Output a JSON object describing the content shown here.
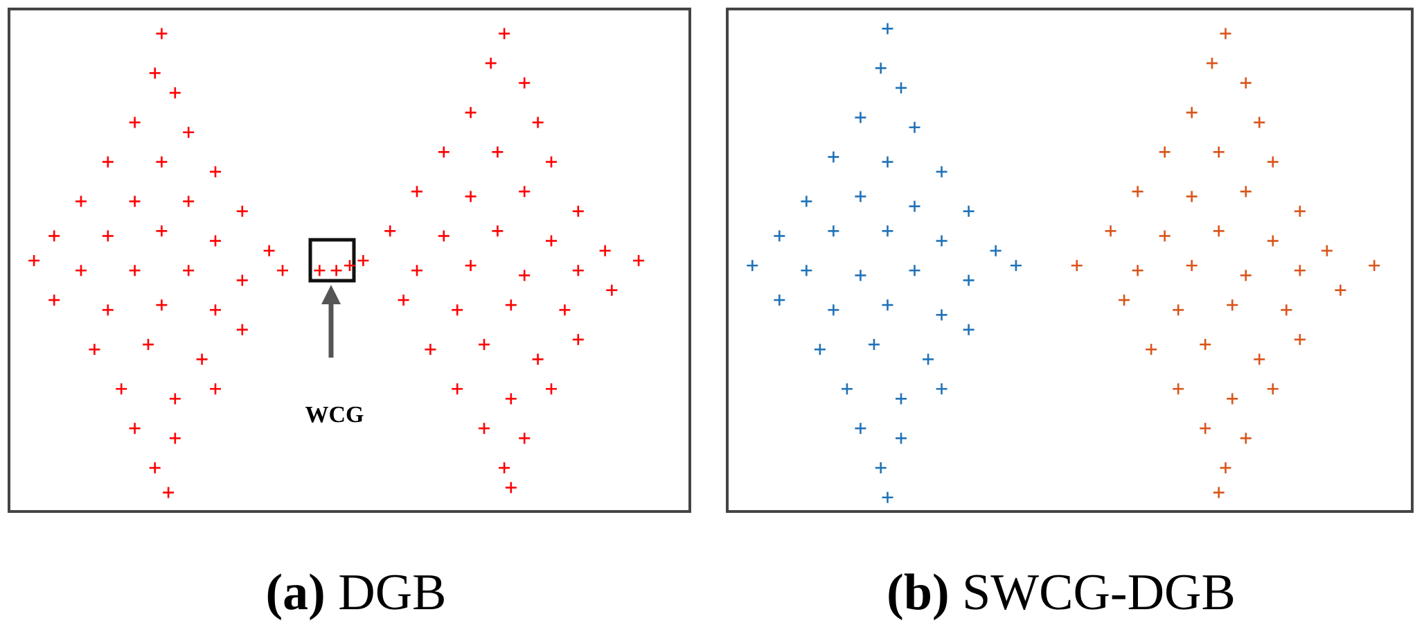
{
  "chart_data": [
    {
      "type": "scatter",
      "panel_label": "(a)",
      "title": "DGB",
      "annotation": "WCG",
      "xlim": [
        0,
        100
      ],
      "ylim": [
        0,
        100
      ],
      "series": [
        {
          "color": "#ff0000",
          "x": [
            22,
            21,
            24,
            18,
            26,
            14,
            22,
            30,
            10,
            18,
            26,
            34,
            6,
            14,
            22,
            30,
            38,
            3,
            10,
            18,
            26,
            34,
            40,
            6,
            14,
            22,
            30,
            12,
            20,
            28,
            34,
            16,
            24,
            30,
            18,
            24,
            21,
            23,
            73,
            71,
            76,
            68,
            78,
            64,
            72,
            80,
            60,
            68,
            76,
            84,
            56,
            64,
            72,
            80,
            88,
            52,
            60,
            68,
            76,
            84,
            93,
            58,
            66,
            74,
            82,
            89,
            62,
            70,
            78,
            84,
            66,
            74,
            80,
            70,
            76,
            73,
            74,
            45.5,
            48,
            50
          ],
          "y": [
            96,
            88,
            84,
            78,
            76,
            70,
            70,
            68,
            62,
            62,
            62,
            60,
            55,
            55,
            56,
            54,
            52,
            50,
            48,
            48,
            48,
            46,
            48,
            42,
            40,
            41,
            40,
            32,
            33,
            30,
            36,
            24,
            22,
            24,
            16,
            14,
            8,
            3,
            96,
            90,
            86,
            80,
            78,
            72,
            72,
            70,
            64,
            63,
            64,
            60,
            56,
            55,
            56,
            54,
            52,
            50,
            48,
            49,
            47,
            48,
            50,
            42,
            40,
            41,
            40,
            44,
            32,
            33,
            30,
            34,
            24,
            22,
            24,
            16,
            14,
            8,
            4,
            48,
            48,
            49
          ]
        }
      ]
    },
    {
      "type": "scatter",
      "panel_label": "(b)",
      "title": "SWCG-DGB",
      "xlim": [
        0,
        100
      ],
      "ylim": [
        0,
        100
      ],
      "series": [
        {
          "color": "#1f72b8",
          "x": [
            23,
            22,
            25,
            19,
            27,
            15,
            23,
            31,
            11,
            19,
            27,
            35,
            7,
            15,
            23,
            31,
            39,
            3,
            11,
            19,
            27,
            35,
            42,
            7,
            15,
            23,
            31,
            13,
            21,
            29,
            35,
            17,
            25,
            31,
            19,
            25,
            22,
            23
          ],
          "y": [
            97,
            89,
            85,
            79,
            77,
            71,
            70,
            68,
            62,
            63,
            61,
            60,
            55,
            56,
            56,
            54,
            52,
            49,
            48,
            47,
            48,
            46,
            49,
            42,
            40,
            41,
            39,
            32,
            33,
            30,
            36,
            24,
            22,
            24,
            16,
            14,
            8,
            2
          ]
        },
        {
          "color": "#d95419",
          "x": [
            73,
            71,
            76,
            68,
            78,
            64,
            72,
            80,
            60,
            68,
            76,
            84,
            56,
            64,
            72,
            80,
            88,
            51,
            60,
            68,
            76,
            84,
            95,
            58,
            66,
            74,
            82,
            90,
            62,
            70,
            78,
            84,
            66,
            74,
            80,
            70,
            76,
            73,
            72
          ],
          "y": [
            96,
            90,
            86,
            80,
            78,
            72,
            72,
            70,
            64,
            63,
            64,
            60,
            56,
            55,
            56,
            54,
            52,
            49,
            48,
            49,
            47,
            48,
            49,
            42,
            40,
            41,
            40,
            44,
            32,
            33,
            30,
            34,
            24,
            22,
            24,
            16,
            14,
            8,
            3
          ]
        }
      ]
    }
  ]
}
